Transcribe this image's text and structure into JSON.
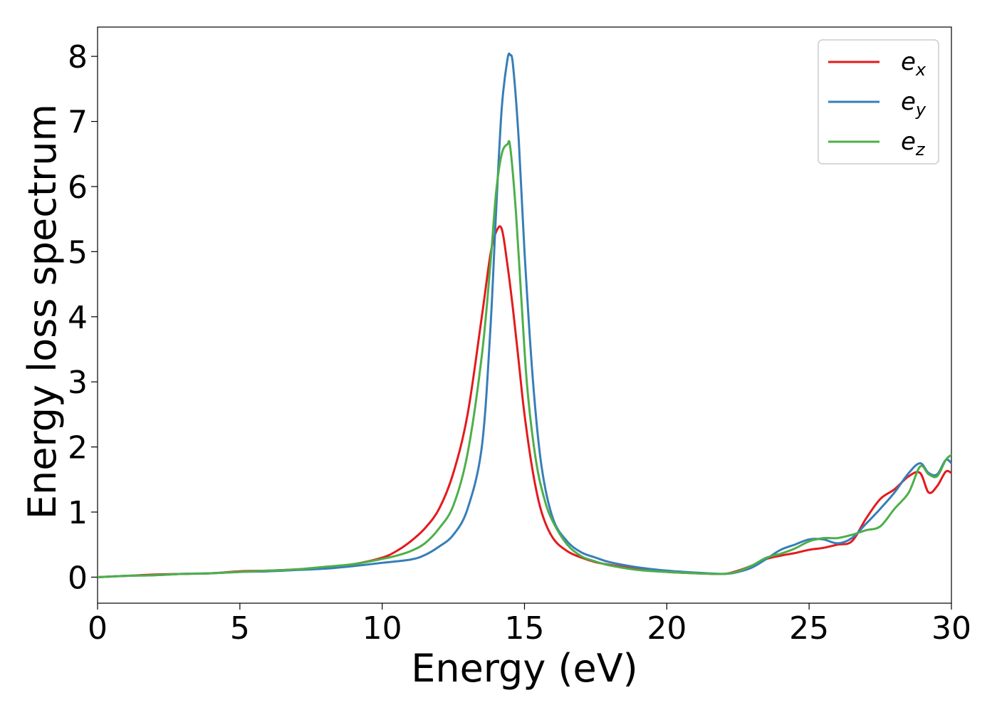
{
  "chart_data": {
    "type": "line",
    "title": "",
    "xlabel": "Energy (eV)",
    "ylabel": "Energy loss spectrum",
    "xlim": [
      0,
      30
    ],
    "ylim": [
      -0.4,
      8.45
    ],
    "xticks": [
      0,
      5,
      10,
      15,
      20,
      25,
      30
    ],
    "yticks": [
      0,
      1,
      2,
      3,
      4,
      5,
      6,
      7,
      8
    ],
    "grid": false,
    "legend_position": "top-right",
    "series": [
      {
        "name": "e_x",
        "label_base": "e",
        "label_sub": "x",
        "color": "#e41a1c",
        "x": [
          0,
          1,
          2,
          3,
          4,
          5,
          6,
          7,
          8,
          9,
          10,
          10.5,
          11,
          11.5,
          12,
          12.5,
          13,
          13.5,
          13.8,
          14,
          14.2,
          14.4,
          14.6,
          14.8,
          15,
          15.3,
          15.6,
          16,
          16.5,
          17,
          17.5,
          18,
          19,
          20,
          21,
          22,
          22.5,
          23,
          23.5,
          24,
          24.5,
          25,
          25.5,
          26,
          26.5,
          27,
          27.5,
          28,
          28.5,
          28.9,
          29.2,
          29.5,
          29.8,
          30
        ],
        "y": [
          0,
          0.02,
          0.04,
          0.05,
          0.06,
          0.09,
          0.1,
          0.12,
          0.15,
          0.2,
          0.3,
          0.4,
          0.55,
          0.75,
          1.05,
          1.6,
          2.5,
          4.0,
          4.95,
          5.3,
          5.35,
          4.8,
          4.1,
          3.3,
          2.5,
          1.6,
          1.0,
          0.6,
          0.4,
          0.3,
          0.23,
          0.19,
          0.12,
          0.08,
          0.06,
          0.05,
          0.1,
          0.18,
          0.28,
          0.33,
          0.37,
          0.42,
          0.45,
          0.5,
          0.55,
          0.9,
          1.2,
          1.35,
          1.55,
          1.6,
          1.3,
          1.4,
          1.62,
          1.6
        ]
      },
      {
        "name": "e_y",
        "label_base": "e",
        "label_sub": "y",
        "color": "#377eb8",
        "x": [
          0,
          1,
          2,
          3,
          4,
          5,
          6,
          7,
          8,
          9,
          10,
          11,
          11.5,
          12,
          12.5,
          13,
          13.5,
          13.8,
          14,
          14.2,
          14.4,
          14.5,
          14.6,
          14.8,
          15,
          15.3,
          15.6,
          16,
          16.5,
          17,
          17.5,
          18,
          19,
          20,
          21,
          22,
          22.5,
          23,
          23.5,
          24,
          24.5,
          25,
          25.5,
          26,
          26.5,
          27,
          27.5,
          28,
          28.5,
          28.9,
          29.2,
          29.5,
          29.8,
          30
        ],
        "y": [
          0,
          0.02,
          0.03,
          0.05,
          0.06,
          0.08,
          0.09,
          0.11,
          0.13,
          0.17,
          0.22,
          0.27,
          0.34,
          0.47,
          0.65,
          1.05,
          2.0,
          3.8,
          5.6,
          7.2,
          7.95,
          8.02,
          7.85,
          6.7,
          5.0,
          3.0,
          1.7,
          0.9,
          0.55,
          0.38,
          0.3,
          0.23,
          0.15,
          0.1,
          0.07,
          0.05,
          0.08,
          0.15,
          0.28,
          0.42,
          0.5,
          0.58,
          0.58,
          0.52,
          0.6,
          0.82,
          1.05,
          1.3,
          1.6,
          1.75,
          1.6,
          1.58,
          1.8,
          1.75
        ]
      },
      {
        "name": "e_z",
        "label_base": "e",
        "label_sub": "z",
        "color": "#4daf4a",
        "x": [
          0,
          1,
          2,
          3,
          4,
          5,
          6,
          7,
          8,
          9,
          10,
          10.5,
          11,
          11.5,
          12,
          12.5,
          13,
          13.5,
          13.8,
          14,
          14.2,
          14.4,
          14.5,
          14.7,
          14.9,
          15.1,
          15.4,
          15.7,
          16,
          16.5,
          17,
          17.5,
          18,
          19,
          20,
          21,
          22,
          22.5,
          23,
          23.5,
          24,
          24.5,
          25,
          25.5,
          26,
          26.5,
          27,
          27.5,
          28,
          28.5,
          28.9,
          29.2,
          29.5,
          29.8,
          30
        ],
        "y": [
          0,
          0.02,
          0.03,
          0.05,
          0.06,
          0.08,
          0.1,
          0.12,
          0.16,
          0.2,
          0.28,
          0.33,
          0.4,
          0.52,
          0.75,
          1.1,
          1.9,
          3.4,
          4.8,
          5.9,
          6.5,
          6.65,
          6.6,
          5.6,
          4.2,
          2.9,
          1.8,
          1.2,
          0.85,
          0.5,
          0.32,
          0.24,
          0.18,
          0.11,
          0.08,
          0.06,
          0.05,
          0.09,
          0.18,
          0.3,
          0.36,
          0.44,
          0.55,
          0.6,
          0.6,
          0.65,
          0.72,
          0.78,
          1.05,
          1.3,
          1.7,
          1.58,
          1.55,
          1.8,
          1.88
        ]
      }
    ]
  }
}
